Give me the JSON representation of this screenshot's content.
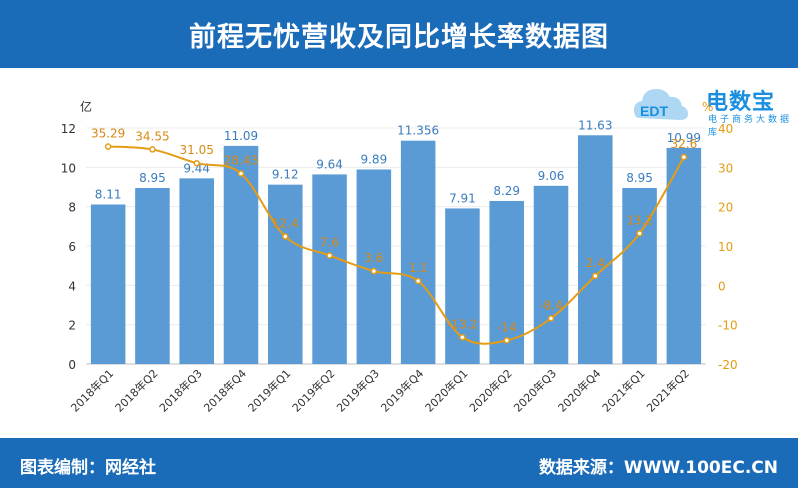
{
  "header": {
    "title": "前程无忧营收及同比增长率数据图"
  },
  "footer": {
    "left": "图表编制：网经社",
    "right": "数据来源：WWW.100EC.CN"
  },
  "logo": {
    "mark": "EDT",
    "name": "电数宝",
    "sub": "电子商务大数据库"
  },
  "colors": {
    "bar": "#5b9bd5",
    "line": "#e49c14",
    "header": "#1a6bb8",
    "barLabel": "#3a7cc0",
    "lineLabel": "#d88a12"
  },
  "chart_data": {
    "type": "bar+line",
    "categories": [
      "2018年Q1",
      "2018年Q2",
      "2018年Q3",
      "2018年Q4",
      "2019年Q1",
      "2019年Q2",
      "2019年Q3",
      "2019年Q4",
      "2020年Q1",
      "2020年Q2",
      "2020年Q3",
      "2020年Q4",
      "2021年Q1",
      "2021年Q2"
    ],
    "bar_labels": [
      "8.11",
      "8.95",
      "9.44",
      "11.09",
      "9.12",
      "9.64",
      "9.89",
      "11.356",
      "7.91",
      "8.29",
      "9.06",
      "11.63",
      "8.95",
      "10.99"
    ],
    "bar_values": [
      8.11,
      8.95,
      9.44,
      11.09,
      9.12,
      9.64,
      9.89,
      11.356,
      7.91,
      8.29,
      9.06,
      11.63,
      8.95,
      10.99
    ],
    "line_labels": [
      "35.29",
      "34.55",
      "31.05",
      "28.43",
      "12.4",
      "7.6",
      "3.6",
      "1.1",
      "-13.2",
      "-14",
      "-8.4",
      "2.4",
      "13.2",
      "32.6"
    ],
    "line_values": [
      35.29,
      34.55,
      31.05,
      28.43,
      12.4,
      7.6,
      3.6,
      1.1,
      -13.2,
      -14,
      -8.4,
      2.4,
      13.2,
      32.6
    ],
    "left_axis": {
      "unit": "亿",
      "min": 0,
      "max": 12,
      "ticks": [
        0,
        2,
        4,
        6,
        8,
        10,
        12
      ]
    },
    "right_axis": {
      "unit": "%",
      "min": -20,
      "max": 40,
      "ticks": [
        -20,
        -10,
        0,
        10,
        20,
        30,
        40
      ]
    },
    "grid": true
  }
}
